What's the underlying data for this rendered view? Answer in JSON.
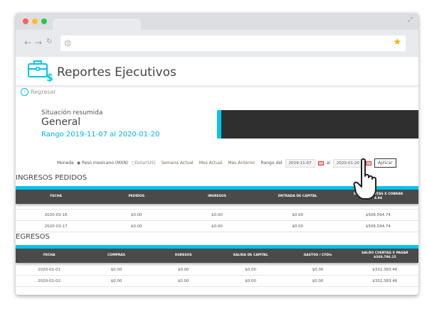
{
  "app": {
    "title": "Reportes Ejecutivos",
    "back_label": "Regresar"
  },
  "summary": {
    "subtitle": "Situación resumida",
    "title": "General",
    "range": "Rango 2019-11-07 al 2020-01-20"
  },
  "filters": {
    "currency_label": "Moneda",
    "currency_options": [
      "Peso mexicano (MXN)",
      "Dolar(US)"
    ],
    "selected_currency": "Peso mexicano (MXN)",
    "links": [
      "Semana Actual",
      "Mes Actual",
      "Mes Anterior"
    ],
    "range_label": "Rango del",
    "from": "2019-11-07",
    "to_label": "al",
    "to": "2020-01-20",
    "apply": "Aplicar"
  },
  "ingresos": {
    "title": "INGRESOS PEDIDOS",
    "headers": [
      "FECHA",
      "PEDIDOS",
      "INGRESOS",
      "ENTRADA DE CAPITAL",
      "SALDO CUENTAS X COBRAR"
    ],
    "header_total": "4.94",
    "rows": [
      [
        "2020-03-16",
        "$0.00",
        "$0.00",
        "$0.00",
        "$506,594.74"
      ],
      [
        "2020-03-17",
        "$0.00",
        "$0.00",
        "$0.00",
        "$506,594.74"
      ]
    ]
  },
  "egresos": {
    "title": "EGRESOS",
    "headers": [
      "FECHA",
      "COMPRAS",
      "EGRESOS",
      "SALIDA DE CAPITAL",
      "GASTOS / CFDIs",
      "SALDO CUENTAS X PAGAR"
    ],
    "header_total": "$269,786.15",
    "rows": [
      [
        "2020-01-01",
        "$0.00",
        "$0.00",
        "$0.00",
        "$0.00",
        "$332,383.46"
      ],
      [
        "2020-01-02",
        "$0.00",
        "$0.00",
        "$0.00",
        "$0.00",
        "$332,383.46"
      ]
    ]
  },
  "colors": {
    "accent": "#00c3f2",
    "header_dark": "#4a4a4a"
  }
}
